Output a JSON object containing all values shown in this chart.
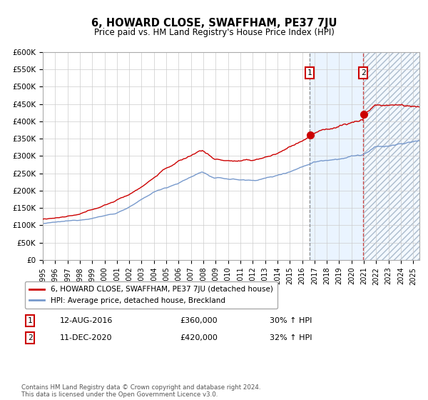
{
  "title": "6, HOWARD CLOSE, SWAFFHAM, PE37 7JU",
  "subtitle": "Price paid vs. HM Land Registry's House Price Index (HPI)",
  "hpi_label": "HPI: Average price, detached house, Breckland",
  "price_label": "6, HOWARD CLOSE, SWAFFHAM, PE37 7JU (detached house)",
  "sale1_date": "12-AUG-2016",
  "sale1_price": 360000,
  "sale1_hpi_pct": "30% ↑ HPI",
  "sale2_date": "11-DEC-2020",
  "sale2_price": 420000,
  "sale2_hpi_pct": "32% ↑ HPI",
  "footer": "Contains HM Land Registry data © Crown copyright and database right 2024.\nThis data is licensed under the Open Government Licence v3.0.",
  "ylim": [
    0,
    600000
  ],
  "yticks": [
    0,
    50000,
    100000,
    150000,
    200000,
    250000,
    300000,
    350000,
    400000,
    450000,
    500000,
    550000,
    600000
  ],
  "price_color": "#cc0000",
  "hpi_color": "#7799cc",
  "sale1_x": 2016.62,
  "sale2_x": 2020.95,
  "bg_shade_color": "#ddeeff",
  "hatch_color": "#aabbcc",
  "grid_color": "#cccccc",
  "xmin": 1995,
  "xmax": 2025.5
}
